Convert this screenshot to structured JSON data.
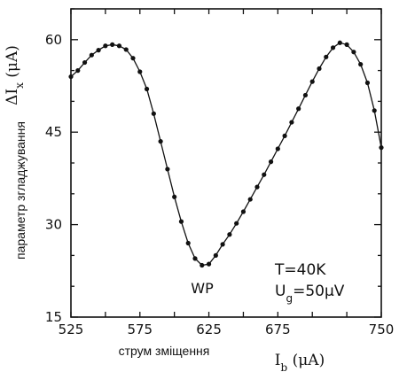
{
  "chart_data": {
    "type": "line",
    "xlabel": "I_b (μA)",
    "ylabel": "ΔI_x (μA)",
    "xlabel_ua": "струм зміщення",
    "ylabel_ua": "параметр згладжування",
    "xlim": [
      525,
      750
    ],
    "ylim": [
      15,
      65
    ],
    "xticks": [
      525,
      550,
      575,
      600,
      625,
      650,
      675,
      700,
      725,
      750
    ],
    "xtick_labels": [
      "525",
      "575",
      "625",
      "675",
      "750"
    ],
    "yticks": [
      15,
      30,
      45,
      60
    ],
    "ytick_labels": [
      "15",
      "30",
      "45",
      "60"
    ],
    "annotations": {
      "wp": "WP",
      "temperature": "T=40K",
      "gate_voltage": "U_g=50μV"
    },
    "series": [
      {
        "x": [
          525,
          530,
          535,
          540,
          545,
          550,
          555,
          560,
          565,
          570,
          575,
          580,
          585,
          590,
          595,
          600,
          605,
          610,
          615,
          620,
          625,
          630,
          635,
          640,
          645,
          650,
          655,
          660,
          665,
          670,
          675,
          680,
          685,
          690,
          695,
          700,
          705,
          710,
          715,
          720,
          725,
          730,
          735,
          740,
          745,
          750
        ],
        "y": [
          54.0,
          55.0,
          56.3,
          57.5,
          58.3,
          59.0,
          59.2,
          59.0,
          58.4,
          57.0,
          54.8,
          52.0,
          48.0,
          43.5,
          39.0,
          34.5,
          30.5,
          27.0,
          24.5,
          23.4,
          23.6,
          25.0,
          26.8,
          28.4,
          30.2,
          32.1,
          34.1,
          36.1,
          38.1,
          40.2,
          42.3,
          44.4,
          46.6,
          48.8,
          51.0,
          53.2,
          55.3,
          57.2,
          58.7,
          59.5,
          59.2,
          58.0,
          56.0,
          53.0,
          48.5,
          42.5
        ]
      }
    ]
  }
}
